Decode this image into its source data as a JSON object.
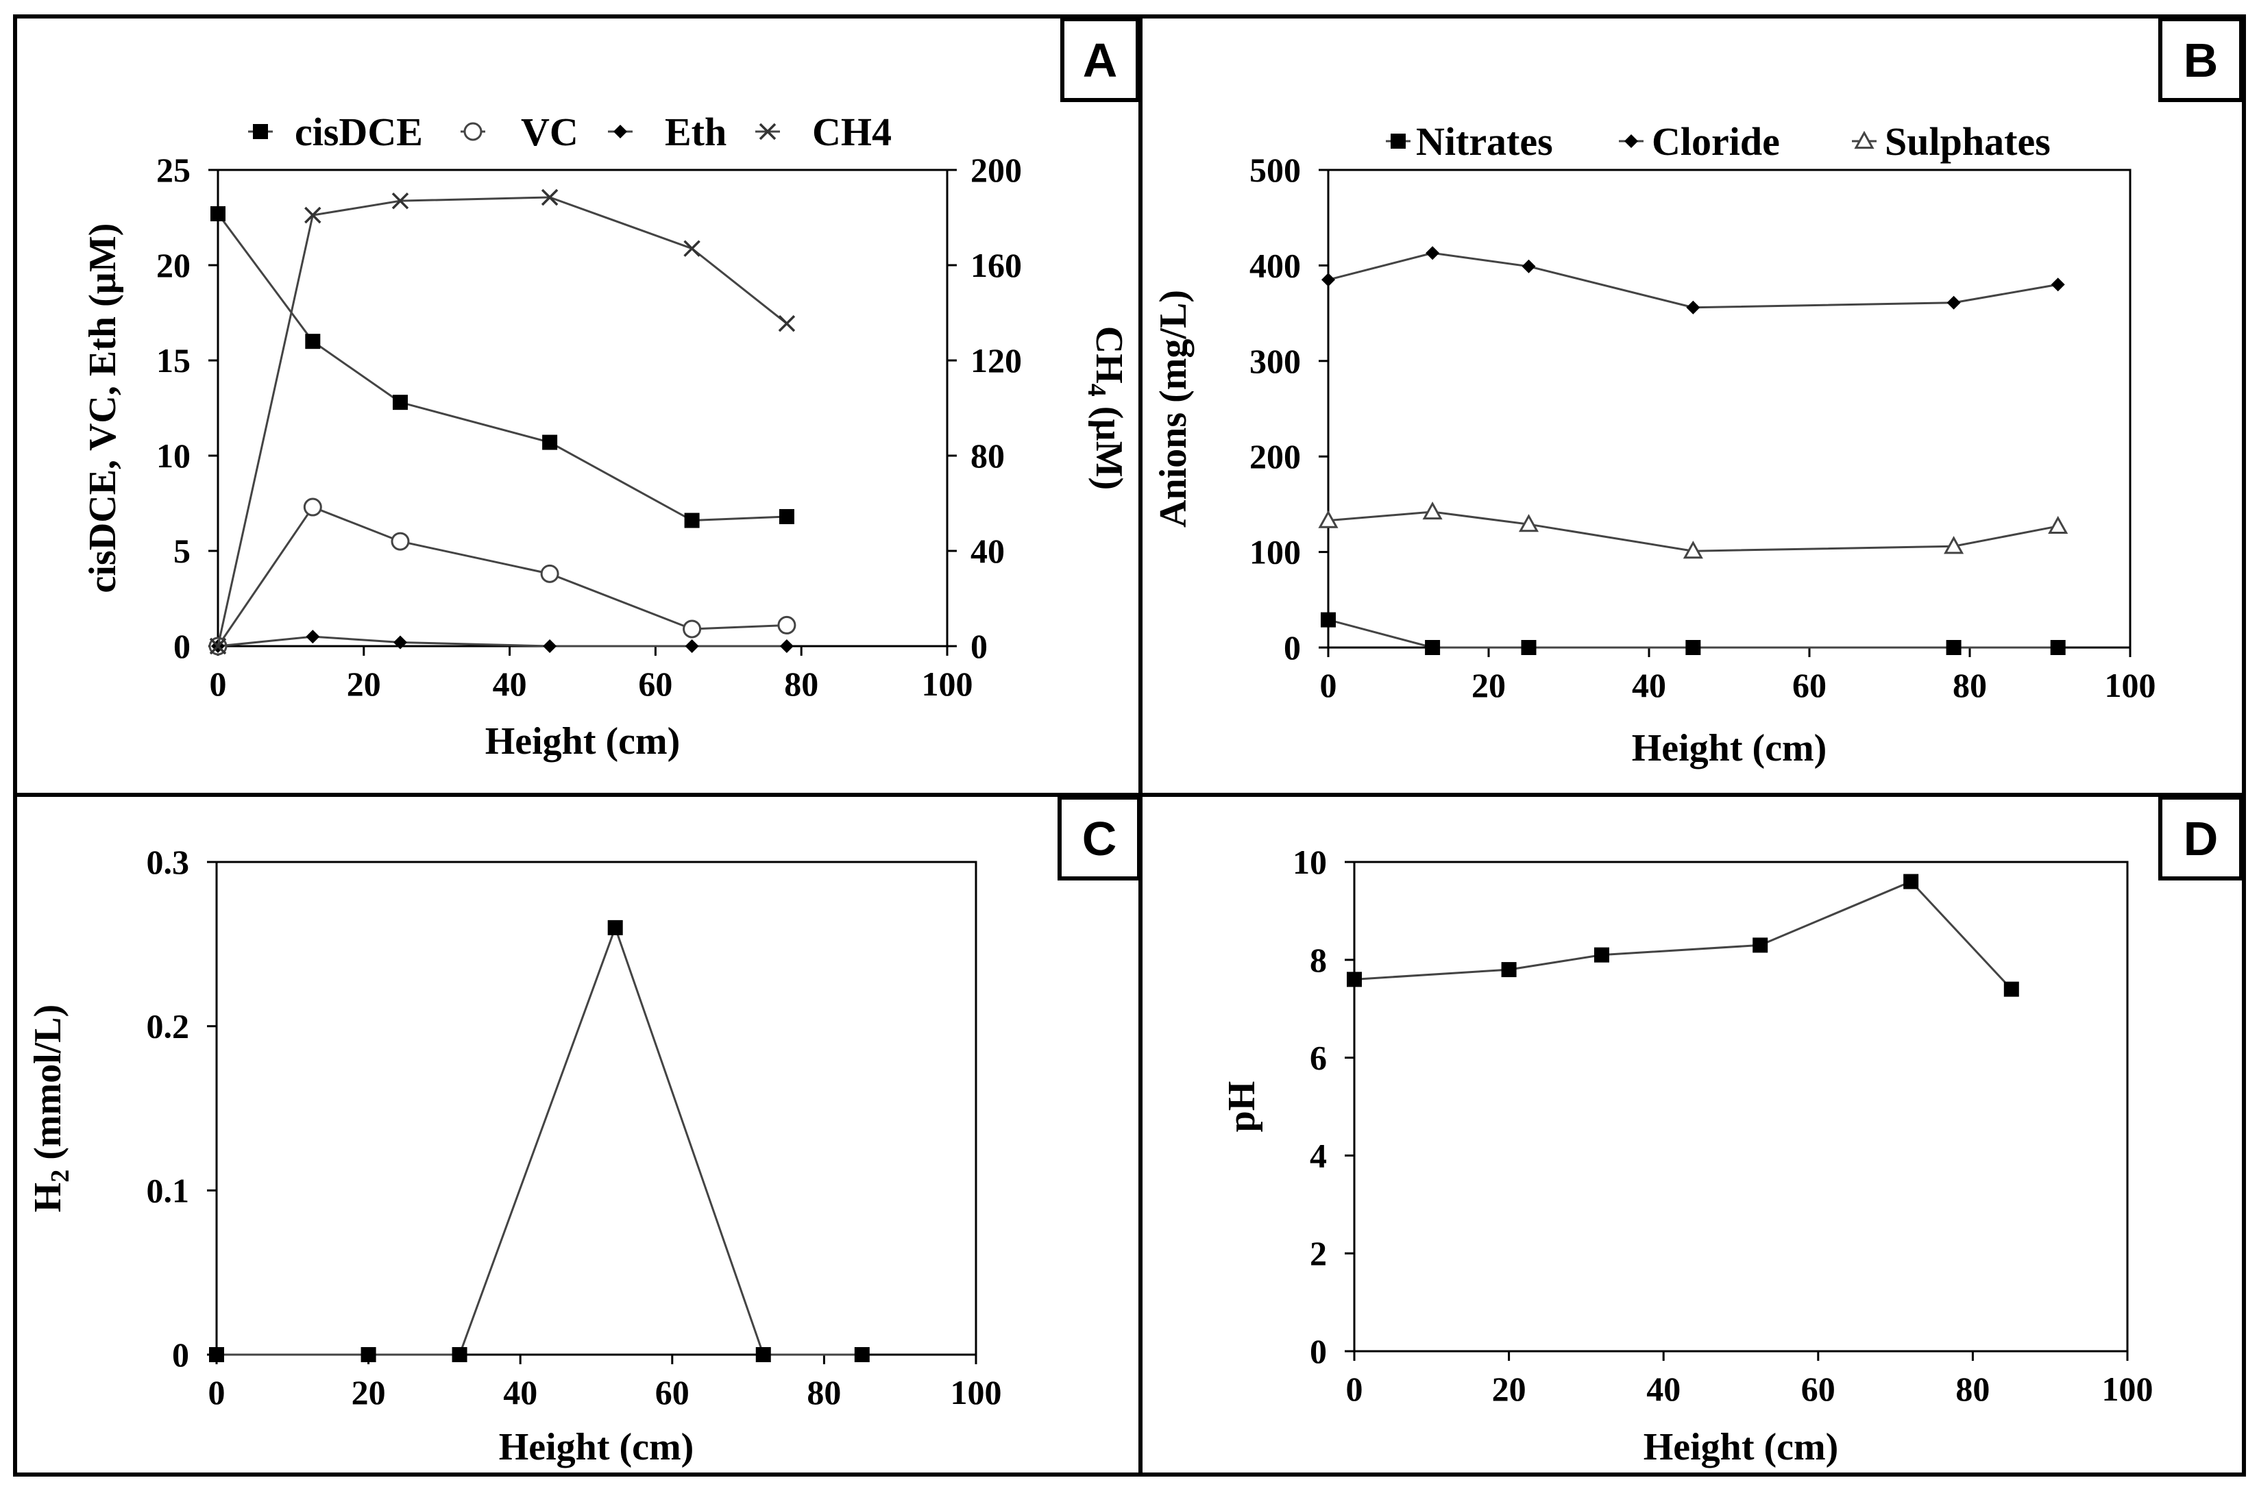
{
  "chart_data": [
    {
      "panel": "A",
      "type": "line",
      "xlabel": "Height (cm)",
      "ylabel": "cisDCE, VC, Eth (µM)",
      "y2label": [
        "CH",
        "4",
        " (µM)"
      ],
      "xlim": [
        0,
        100
      ],
      "xticks": [
        0,
        20,
        40,
        60,
        80,
        100
      ],
      "ylim": [
        0,
        25
      ],
      "yticks": [
        0,
        5,
        10,
        15,
        20,
        25
      ],
      "y2lim": [
        0,
        200
      ],
      "y2ticks": [
        0,
        40,
        80,
        120,
        160,
        200
      ],
      "legend_position": "top",
      "series": [
        {
          "name": "cisDCE",
          "marker": "square",
          "axis": "left",
          "x": [
            0,
            13,
            25,
            45.5,
            65,
            78
          ],
          "y": [
            22.7,
            16,
            12.8,
            10.7,
            6.6,
            6.8
          ]
        },
        {
          "name": "VC",
          "marker": "circle-open",
          "axis": "left",
          "x": [
            0,
            13,
            25,
            45.5,
            65,
            78
          ],
          "y": [
            0,
            7.3,
            5.5,
            3.8,
            0.9,
            1.1
          ]
        },
        {
          "name": "Eth",
          "marker": "diamond",
          "axis": "left",
          "x": [
            0,
            13,
            25,
            45.5,
            65,
            78
          ],
          "y": [
            0,
            0.5,
            0.2,
            0,
            0,
            0
          ]
        },
        {
          "name": "CH4",
          "marker": "x",
          "axis": "right",
          "x": [
            0,
            13,
            25,
            45.5,
            65,
            78
          ],
          "y": [
            0,
            181,
            187,
            188.5,
            167,
            135.5
          ]
        }
      ]
    },
    {
      "panel": "B",
      "type": "line",
      "xlabel": "Height (cm)",
      "ylabel": "Anions (mg/L)",
      "xlim": [
        0,
        100
      ],
      "xticks": [
        0,
        20,
        40,
        60,
        80,
        100
      ],
      "ylim": [
        0,
        500
      ],
      "yticks": [
        0,
        100,
        200,
        300,
        400,
        500
      ],
      "legend_position": "top",
      "series": [
        {
          "name": "Nitrates",
          "marker": "square",
          "x": [
            0,
            13,
            25,
            45.5,
            78,
            91
          ],
          "y": [
            29,
            0,
            0,
            0,
            0,
            0
          ]
        },
        {
          "name": "Cloride",
          "marker": "diamond",
          "x": [
            0,
            13,
            25,
            45.5,
            78,
            91
          ],
          "y": [
            385,
            413,
            399,
            356,
            361,
            380
          ]
        },
        {
          "name": "Sulphates",
          "marker": "triangle-open",
          "x": [
            0,
            13,
            25,
            45.5,
            78,
            91
          ],
          "y": [
            133,
            142,
            129,
            101,
            106,
            127
          ]
        }
      ]
    },
    {
      "panel": "C",
      "type": "line",
      "xlabel": "Height (cm)",
      "ylabel": [
        "H",
        "2",
        " (mmol/L)"
      ],
      "xlim": [
        0,
        100
      ],
      "xticks": [
        0,
        20,
        40,
        60,
        80,
        100
      ],
      "ylim": [
        0,
        0.3
      ],
      "yticks": [
        0,
        0.1,
        0.2,
        0.3
      ],
      "yticklabels": [
        "0",
        "0.1",
        "0.2",
        "0.3"
      ],
      "series": [
        {
          "marker": "square",
          "x": [
            0,
            20,
            32,
            52.5,
            72,
            85
          ],
          "y": [
            0,
            0,
            0,
            0.26,
            0,
            0
          ]
        }
      ]
    },
    {
      "panel": "D",
      "type": "line",
      "xlabel": "Height (cm)",
      "ylabel": "pH",
      "xlim": [
        0,
        100
      ],
      "xticks": [
        0,
        20,
        40,
        60,
        80,
        100
      ],
      "ylim": [
        0,
        10
      ],
      "yticks": [
        0,
        2,
        4,
        6,
        8,
        10
      ],
      "series": [
        {
          "marker": "square",
          "x": [
            0,
            20,
            32,
            52.5,
            72,
            85
          ],
          "y": [
            7.6,
            7.8,
            8.1,
            8.3,
            9.6,
            7.4
          ]
        }
      ]
    }
  ]
}
